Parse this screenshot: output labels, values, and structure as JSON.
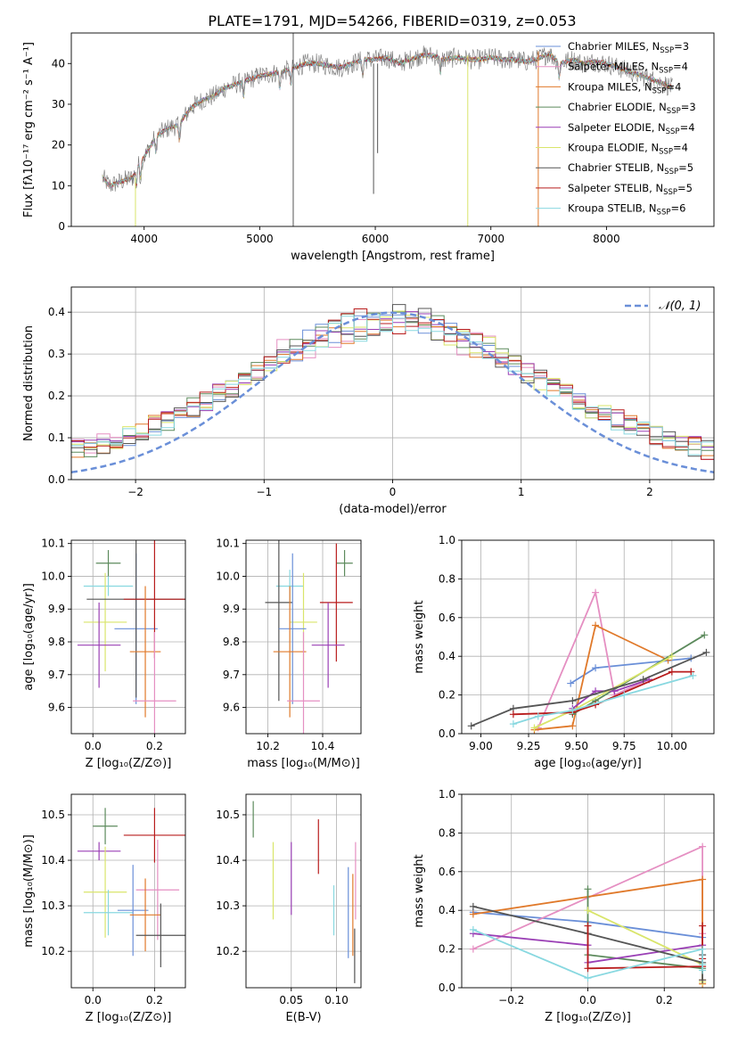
{
  "figure": {
    "title": "PLATE=1791, MJD=54266, FIBERID=0319, z=0.053"
  },
  "chart_data": [
    {
      "id": "spectrum",
      "type": "line",
      "xlabel": "wavelength [Angstrom, rest frame]",
      "ylabel": "Flux [fλ10⁻¹⁷ erg cm⁻² s⁻¹ A⁻¹]",
      "xlim": [
        3370,
        8930
      ],
      "ylim": [
        0,
        47.5
      ],
      "xticks": [
        4000,
        5000,
        6000,
        7000,
        8000
      ],
      "yticks": [
        0,
        10,
        20,
        30,
        40
      ],
      "grid": false,
      "legend_position": "top-right",
      "continuum": {
        "x": [
          3640,
          3700,
          3800,
          3900,
          3950,
          4000,
          4100,
          4200,
          4300,
          4400,
          4500,
          4600,
          4700,
          4800,
          4900,
          5000,
          5100,
          5200,
          5300,
          5400,
          5500,
          5600,
          5700,
          5800,
          5900,
          6000,
          6100,
          6200,
          6300,
          6400,
          6500,
          6600,
          6700,
          6800,
          6900,
          7000,
          7100,
          7200,
          7300,
          7400,
          7500,
          7600,
          7700,
          7800,
          7900,
          8000,
          8100,
          8200,
          8300,
          8400,
          8500,
          8570
        ],
        "y": [
          12,
          10,
          11,
          12,
          15,
          17,
          22,
          24,
          25,
          29,
          31,
          32,
          34,
          35,
          36,
          37,
          37.5,
          38,
          39,
          40,
          40,
          39.5,
          39,
          40,
          41,
          41,
          41.5,
          40,
          41,
          42,
          42,
          41,
          41.5,
          41,
          41,
          41.5,
          41,
          41,
          40.5,
          41,
          42.5,
          40,
          41,
          40,
          40.5,
          40,
          39,
          38,
          37,
          36,
          35,
          34
        ]
      },
      "series": [
        {
          "name": "Chabrier MILES, N$_{SSP}$=3",
          "label_parts": [
            "Chabrier MILES, N",
            "SSP",
            "=3"
          ],
          "color": "#6a8fd8"
        },
        {
          "name": "Salpeter MILES, N$_{SSP}$=4",
          "label_parts": [
            "Salpeter MILES, N",
            "SSP",
            "=4"
          ],
          "color": "#e58fc2"
        },
        {
          "name": "Kroupa MILES, N$_{SSP}$=4",
          "label_parts": [
            "Kroupa MILES, N",
            "SSP",
            "=4"
          ],
          "color": "#e0792a"
        },
        {
          "name": "Chabrier ELODIE, N$_{SSP}$=3",
          "label_parts": [
            "Chabrier ELODIE, N",
            "SSP",
            "=3"
          ],
          "color": "#5c8a5c"
        },
        {
          "name": "Salpeter ELODIE, N$_{SSP}$=4",
          "label_parts": [
            "Salpeter ELODIE, N",
            "SSP",
            "=4"
          ],
          "color": "#9a3fb5"
        },
        {
          "name": "Kroupa ELODIE, N$_{SSP}$=4",
          "label_parts": [
            "Kroupa ELODIE, N",
            "SSP",
            "=4"
          ],
          "color": "#d9e56a"
        },
        {
          "name": "Chabrier STELIB, N$_{SSP}$=5",
          "label_parts": [
            "Chabrier STELIB, N",
            "SSP",
            "=5"
          ],
          "color": "#555555"
        },
        {
          "name": "Salpeter STELIB, N$_{SSP}$=5",
          "label_parts": [
            "Salpeter STELIB, N",
            "SSP",
            "=5"
          ],
          "color": "#b81c1c"
        },
        {
          "name": "Kroupa STELIB, N$_{SSP}$=6",
          "label_parts": [
            "Kroupa STELIB, N",
            "SSP",
            "=6"
          ],
          "color": "#88d8e0"
        }
      ]
    },
    {
      "id": "residuals",
      "type": "histogram",
      "xlabel": "(data-model)/error",
      "ylabel": "Normed distribution",
      "xlim": [
        -2.5,
        2.5
      ],
      "ylim": [
        0,
        0.46
      ],
      "xticks": [
        -2,
        -1,
        0,
        1,
        2
      ],
      "yticks": [
        0.0,
        0.1,
        0.2,
        0.3,
        0.4
      ],
      "grid": true,
      "legend_position": "top-right",
      "reference_curve": {
        "name": "𝒩(0, 1)",
        "color": "#6a8fd8",
        "mean": 0,
        "sigma": 1
      },
      "bin_edges_range": [
        -2.5,
        2.5
      ],
      "bin_count": 50,
      "series_colors": [
        "#6a8fd8",
        "#e58fc2",
        "#e0792a",
        "#5c8a5c",
        "#9a3fb5",
        "#d9e56a",
        "#555555",
        "#b81c1c",
        "#88d8e0"
      ]
    },
    {
      "id": "age_vs_Z",
      "type": "scatter",
      "xlabel": "Z [log₁₀(Z/Z⊙)]",
      "ylabel": "age  [log₁₀(age/yr)]",
      "xlim": [
        -0.07,
        0.3
      ],
      "ylim": [
        9.52,
        10.11
      ],
      "xticks": [
        0.0,
        0.2
      ],
      "yticks": [
        9.6,
        9.7,
        9.8,
        9.9,
        10.0,
        10.1
      ],
      "grid": true,
      "points": [
        {
          "x": 0.05,
          "y": 9.97,
          "xerr": 0.08,
          "yerr": 0.03,
          "color": "#88d8e0"
        },
        {
          "x": 0.05,
          "y": 10.04,
          "xerr": 0.04,
          "yerr": 0.04,
          "color": "#5c8a5c"
        },
        {
          "x": 0.04,
          "y": 9.86,
          "xerr": 0.07,
          "yerr": 0.15,
          "color": "#d9e56a"
        },
        {
          "x": 0.02,
          "y": 9.79,
          "xerr": 0.07,
          "yerr": 0.13,
          "color": "#9a3fb5"
        },
        {
          "x": 0.14,
          "y": 9.84,
          "xerr": 0.07,
          "yerr": 0.23,
          "color": "#6a8fd8"
        },
        {
          "x": 0.14,
          "y": 9.93,
          "xerr": 0.16,
          "yerr": 0.3,
          "color": "#555555"
        },
        {
          "x": 0.2,
          "y": 9.93,
          "xerr": 0.1,
          "yerr": 0.18,
          "color": "#b81c1c"
        },
        {
          "x": 0.17,
          "y": 9.77,
          "xerr": 0.05,
          "yerr": 0.2,
          "color": "#e0792a"
        },
        {
          "x": 0.2,
          "y": 9.62,
          "xerr": 0.07,
          "yerr": 0.21,
          "color": "#e58fc2"
        }
      ]
    },
    {
      "id": "age_vs_mass",
      "type": "scatter",
      "xlabel": "mass [log₁₀(M/M⊙)]",
      "ylabel": "",
      "xlim": [
        10.12,
        10.54
      ],
      "ylim": [
        9.52,
        10.11
      ],
      "xticks": [
        10.2,
        10.4
      ],
      "yticks": [
        9.6,
        9.7,
        9.8,
        9.9,
        10.0,
        10.1
      ],
      "grid": true,
      "points": [
        {
          "x": 10.48,
          "y": 10.04,
          "xerr": 0.03,
          "yerr": 0.04,
          "color": "#5c8a5c"
        },
        {
          "x": 10.28,
          "y": 9.97,
          "xerr": 0.05,
          "yerr": 0.05,
          "color": "#88d8e0"
        },
        {
          "x": 10.33,
          "y": 9.86,
          "xerr": 0.05,
          "yerr": 0.15,
          "color": "#d9e56a"
        },
        {
          "x": 10.24,
          "y": 9.92,
          "xerr": 0.05,
          "yerr": 0.3,
          "color": "#555555"
        },
        {
          "x": 10.45,
          "y": 9.92,
          "xerr": 0.06,
          "yerr": 0.18,
          "color": "#b81c1c"
        },
        {
          "x": 10.29,
          "y": 9.84,
          "xerr": 0.05,
          "yerr": 0.23,
          "color": "#6a8fd8"
        },
        {
          "x": 10.42,
          "y": 9.79,
          "xerr": 0.06,
          "yerr": 0.13,
          "color": "#9a3fb5"
        },
        {
          "x": 10.28,
          "y": 9.77,
          "xerr": 0.06,
          "yerr": 0.2,
          "color": "#e0792a"
        },
        {
          "x": 10.33,
          "y": 9.62,
          "xerr": 0.06,
          "yerr": 0.21,
          "color": "#e58fc2"
        }
      ]
    },
    {
      "id": "mass_weight_vs_age",
      "type": "line",
      "xlabel": "age  [log₁₀(age/yr)]",
      "ylabel": "mass weight",
      "xlim": [
        8.9,
        10.22
      ],
      "ylim": [
        0,
        1.0
      ],
      "xticks": [
        9.0,
        9.25,
        9.5,
        9.75,
        10.0
      ],
      "yticks": [
        0.0,
        0.2,
        0.4,
        0.6,
        0.8,
        1.0
      ],
      "grid": true,
      "series": [
        {
          "color": "#6a8fd8",
          "x": [
            9.47,
            9.6,
            10.1
          ],
          "y": [
            0.26,
            0.34,
            0.39
          ]
        },
        {
          "color": "#e58fc2",
          "x": [
            9.3,
            9.6,
            9.7,
            9.88
          ],
          "y": [
            0.03,
            0.73,
            0.2,
            0.28
          ]
        },
        {
          "color": "#e0792a",
          "x": [
            9.28,
            9.48,
            9.6,
            9.98
          ],
          "y": [
            0.02,
            0.04,
            0.56,
            0.38
          ]
        },
        {
          "color": "#5c8a5c",
          "x": [
            9.48,
            9.6,
            10.17
          ],
          "y": [
            0.1,
            0.17,
            0.51
          ]
        },
        {
          "color": "#9a3fb5",
          "x": [
            9.48,
            9.6,
            9.7,
            9.88
          ],
          "y": [
            0.13,
            0.22,
            0.22,
            0.28
          ]
        },
        {
          "color": "#d9e56a",
          "x": [
            9.28,
            9.48,
            10.0
          ],
          "y": [
            0.03,
            0.12,
            0.4
          ]
        },
        {
          "color": "#555555",
          "x": [
            8.95,
            9.17,
            9.48,
            9.85,
            10.18
          ],
          "y": [
            0.04,
            0.13,
            0.17,
            0.28,
            0.42
          ]
        },
        {
          "color": "#b81c1c",
          "x": [
            9.17,
            9.48,
            9.6,
            10.0,
            10.1
          ],
          "y": [
            0.1,
            0.11,
            0.15,
            0.32,
            0.32
          ]
        },
        {
          "color": "#88d8e0",
          "x": [
            9.17,
            9.3,
            9.48,
            9.75,
            10.11
          ],
          "y": [
            0.05,
            0.09,
            0.12,
            0.2,
            0.3
          ]
        }
      ]
    },
    {
      "id": "mass_vs_Z",
      "type": "scatter",
      "xlabel": "Z [log₁₀(Z/Z⊙)]",
      "ylabel": "mass [log₁₀(M/M⊙)]",
      "xlim": [
        -0.07,
        0.3
      ],
      "ylim": [
        10.12,
        10.545
      ],
      "xticks": [
        0.0,
        0.2
      ],
      "yticks": [
        10.2,
        10.3,
        10.4,
        10.5
      ],
      "grid": true,
      "points": [
        {
          "x": 0.04,
          "y": 10.475,
          "xerr": 0.04,
          "yerr": 0.04,
          "color": "#5c8a5c"
        },
        {
          "x": 0.2,
          "y": 10.455,
          "xerr": 0.1,
          "yerr": 0.06,
          "color": "#b81c1c"
        },
        {
          "x": 0.02,
          "y": 10.42,
          "xerr": 0.07,
          "yerr": 0.02,
          "color": "#9a3fb5"
        },
        {
          "x": 0.04,
          "y": 10.33,
          "xerr": 0.07,
          "yerr": 0.1,
          "color": "#d9e56a"
        },
        {
          "x": 0.21,
          "y": 10.335,
          "xerr": 0.07,
          "yerr": 0.11,
          "color": "#e58fc2"
        },
        {
          "x": 0.05,
          "y": 10.285,
          "xerr": 0.08,
          "yerr": 0.05,
          "color": "#88d8e0"
        },
        {
          "x": 0.13,
          "y": 10.29,
          "xerr": 0.05,
          "yerr": 0.1,
          "color": "#6a8fd8"
        },
        {
          "x": 0.17,
          "y": 10.28,
          "xerr": 0.05,
          "yerr": 0.08,
          "color": "#e0792a"
        },
        {
          "x": 0.22,
          "y": 10.235,
          "xerr": 0.08,
          "yerr": 0.07,
          "color": "#555555"
        }
      ]
    },
    {
      "id": "mass_vs_ebv",
      "type": "scatter",
      "xlabel": "E(B-V)",
      "ylabel": "",
      "xlim": [
        0.0,
        0.127
      ],
      "ylim": [
        10.12,
        10.545
      ],
      "xticks": [
        0.05,
        0.1
      ],
      "yticks": [
        10.2,
        10.3,
        10.4,
        10.5
      ],
      "grid": true,
      "points": [
        {
          "x": 0.008,
          "y": 10.49,
          "xerr": 0,
          "yerr": 0.04,
          "color": "#5c8a5c"
        },
        {
          "x": 0.03,
          "y": 10.355,
          "xerr": 0,
          "yerr": 0.085,
          "color": "#d9e56a"
        },
        {
          "x": 0.05,
          "y": 10.36,
          "xerr": 0,
          "yerr": 0.08,
          "color": "#9a3fb5"
        },
        {
          "x": 0.08,
          "y": 10.43,
          "xerr": 0,
          "yerr": 0.06,
          "color": "#b81c1c"
        },
        {
          "x": 0.097,
          "y": 10.29,
          "xerr": 0,
          "yerr": 0.055,
          "color": "#88d8e0"
        },
        {
          "x": 0.113,
          "y": 10.285,
          "xerr": 0,
          "yerr": 0.1,
          "color": "#6a8fd8"
        },
        {
          "x": 0.118,
          "y": 10.28,
          "xerr": 0,
          "yerr": 0.09,
          "color": "#e0792a"
        },
        {
          "x": 0.121,
          "y": 10.355,
          "xerr": 0,
          "yerr": 0.085,
          "color": "#e58fc2"
        },
        {
          "x": 0.12,
          "y": 10.19,
          "xerr": 0,
          "yerr": 0.06,
          "color": "#555555"
        }
      ]
    },
    {
      "id": "mass_weight_vs_Z",
      "type": "line",
      "xlabel": "Z [log₁₀(Z/Z⊙)]",
      "ylabel": "mass weight",
      "xlim": [
        -0.33,
        0.33
      ],
      "ylim": [
        0,
        1.0
      ],
      "xticks": [
        -0.2,
        0.0,
        0.2
      ],
      "yticks": [
        0.0,
        0.2,
        0.4,
        0.6,
        0.8,
        1.0
      ],
      "grid": true,
      "series": [
        {
          "color": "#6a8fd8",
          "x": [
            -0.3,
            0.0,
            0.3
          ],
          "y": [
            0.39,
            0.34,
            0.26
          ]
        },
        {
          "color": "#e58fc2",
          "x": [
            -0.3,
            0.3,
            0.3,
            0.3
          ],
          "y": [
            0.2,
            0.73,
            0.28,
            0.03
          ]
        },
        {
          "color": "#e0792a",
          "x": [
            -0.3,
            0.3,
            0.3,
            0.3
          ],
          "y": [
            0.38,
            0.56,
            0.04,
            0.02
          ]
        },
        {
          "color": "#5c8a5c",
          "x": [
            0.0,
            0.0,
            0.3
          ],
          "y": [
            0.51,
            0.17,
            0.1
          ]
        },
        {
          "color": "#9a3fb5",
          "x": [
            -0.3,
            0.0,
            0.0,
            0.3
          ],
          "y": [
            0.28,
            0.22,
            0.13,
            0.22
          ]
        },
        {
          "color": "#d9e56a",
          "x": [
            0.0,
            0.3,
            0.3
          ],
          "y": [
            0.4,
            0.12,
            0.03
          ]
        },
        {
          "color": "#555555",
          "x": [
            -0.3,
            0.0,
            0.3,
            0.3,
            0.3
          ],
          "y": [
            0.42,
            0.28,
            0.13,
            0.17,
            0.04
          ]
        },
        {
          "color": "#b81c1c",
          "x": [
            0.0,
            0.0,
            0.3,
            0.3,
            0.3
          ],
          "y": [
            0.32,
            0.1,
            0.11,
            0.32,
            0.15
          ]
        },
        {
          "color": "#88d8e0",
          "x": [
            -0.3,
            0.0,
            0.3,
            0.3,
            0.3
          ],
          "y": [
            0.3,
            0.05,
            0.2,
            0.09,
            0.12
          ]
        }
      ]
    }
  ]
}
